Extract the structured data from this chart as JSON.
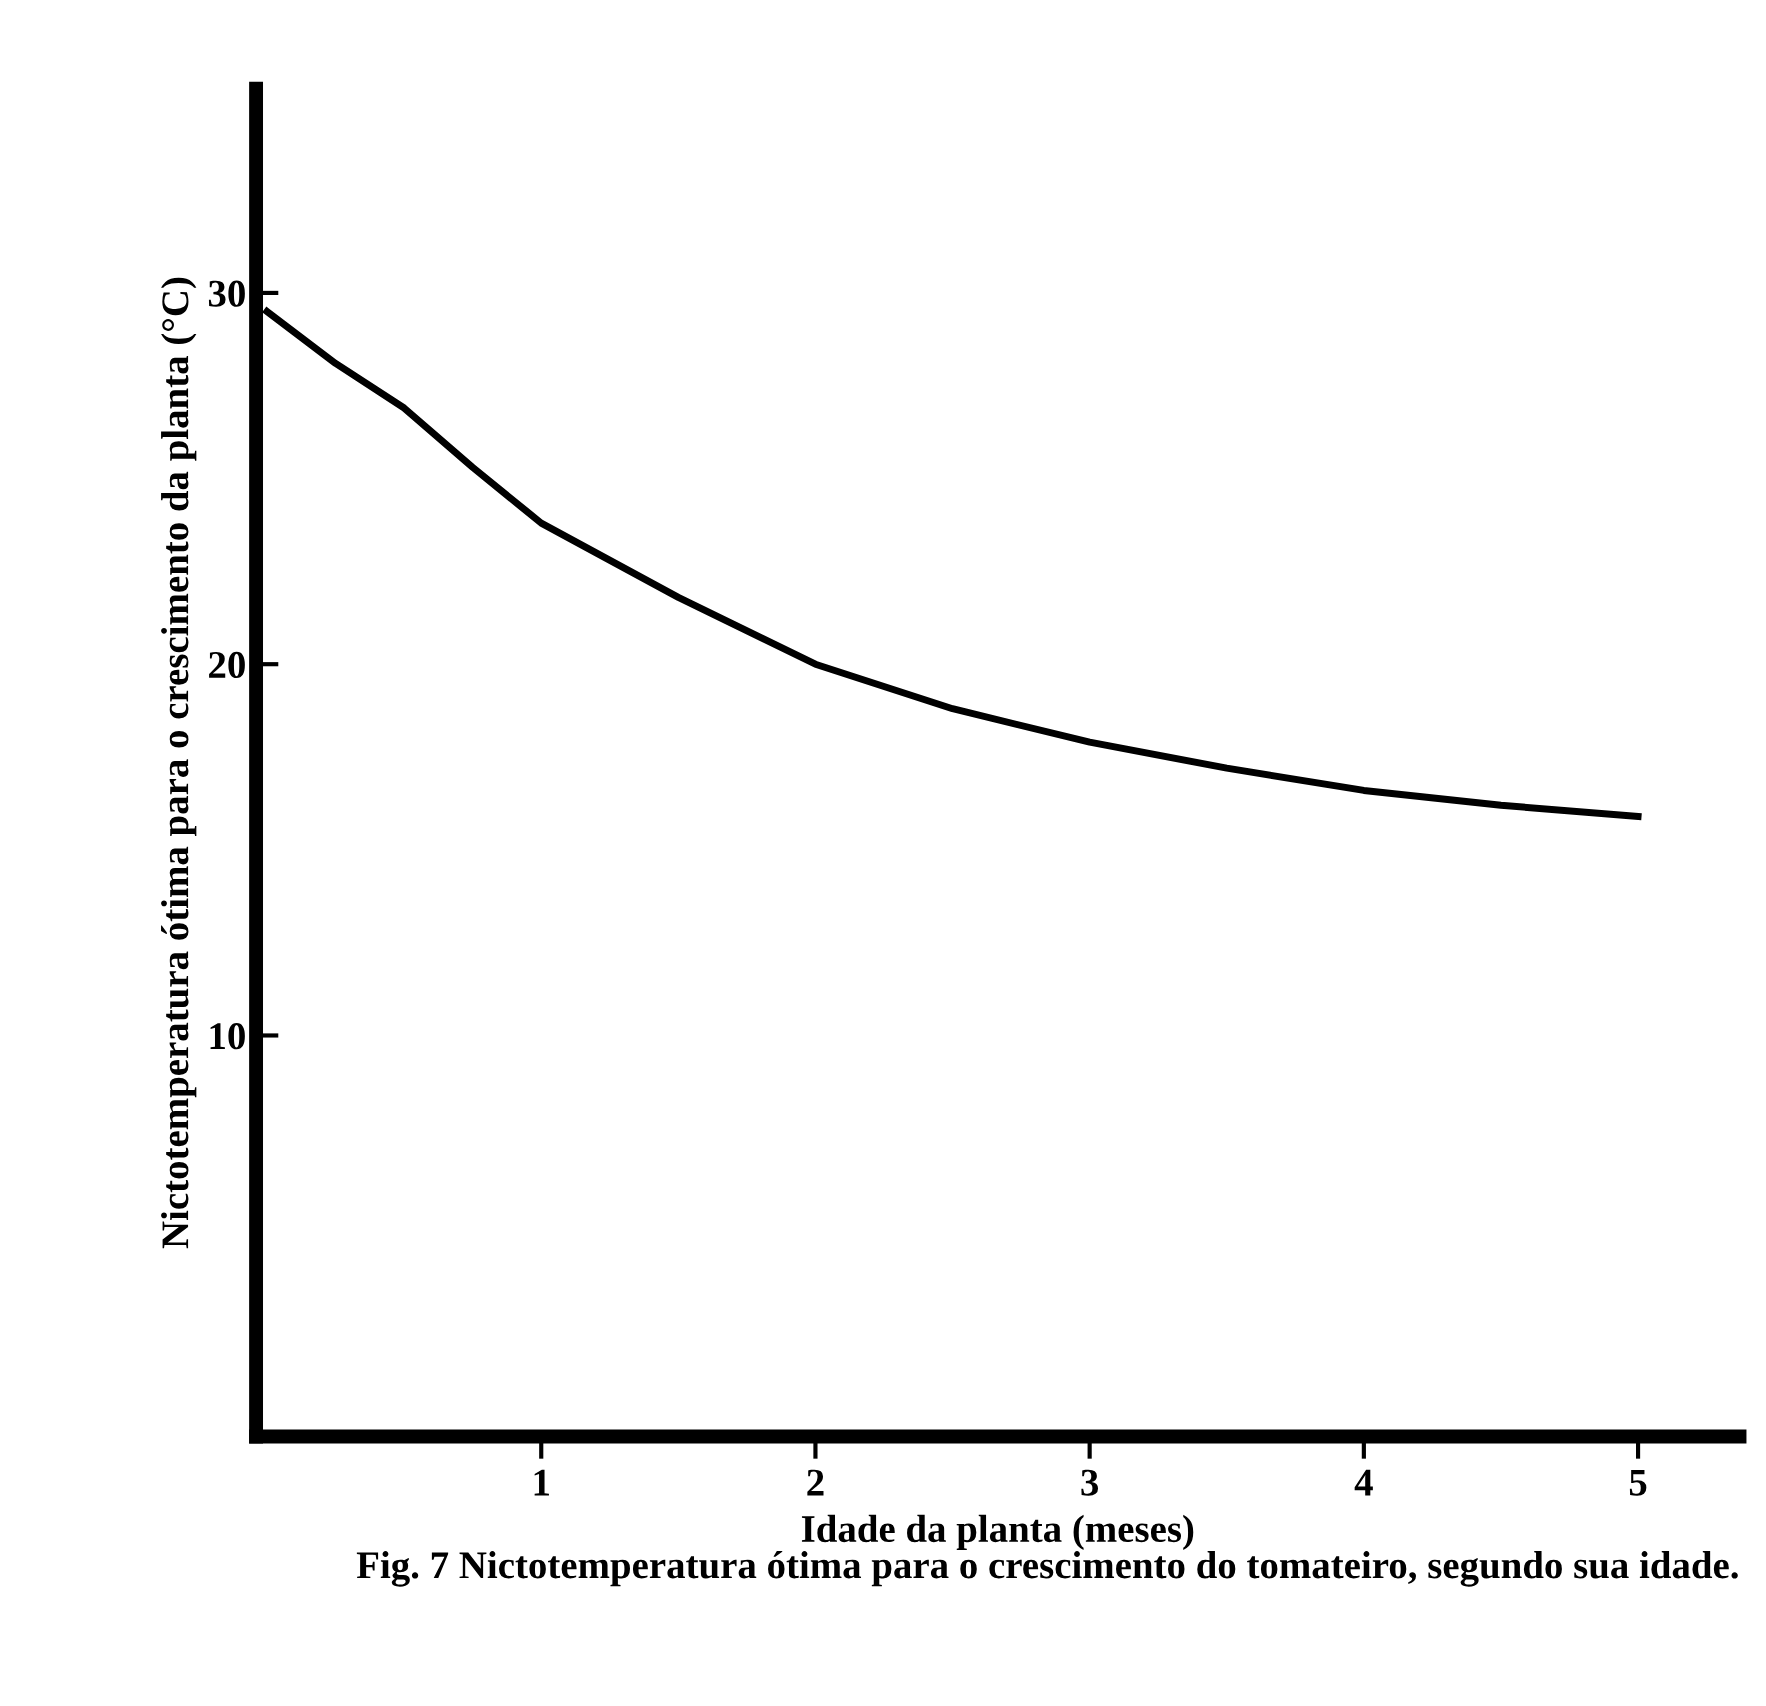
{
  "chart_data": {
    "type": "line",
    "xlabel": "Idade da planta (meses)",
    "ylabel": "Nictotemperatura ótima para o crescimento da planta (°C)",
    "annotations": [
      "Fig. 7 Nictotemperatura ótima para o crescimento do tomateiro, segundo sua idade."
    ],
    "series": [
      {
        "color": "#000000",
        "x": [
          0,
          0.25,
          0.5,
          0.75,
          1,
          1.5,
          2,
          2.5,
          3,
          3.5,
          4,
          4.5,
          5
        ],
        "values": [
          29.5,
          28.1,
          26.9,
          25.3,
          23.8,
          21.8,
          20.0,
          18.8,
          17.9,
          17.2,
          16.6,
          16.2,
          15.9
        ]
      }
    ],
    "xlim": [
      -0.04,
      5.37
    ],
    "ylim": [
      -0.8,
      35.5
    ],
    "xticks": [
      1,
      2,
      3,
      4,
      5
    ],
    "yticks": [
      10,
      20,
      30
    ],
    "grid": false,
    "legend": false,
    "marker": "none",
    "line_style": "solid"
  }
}
